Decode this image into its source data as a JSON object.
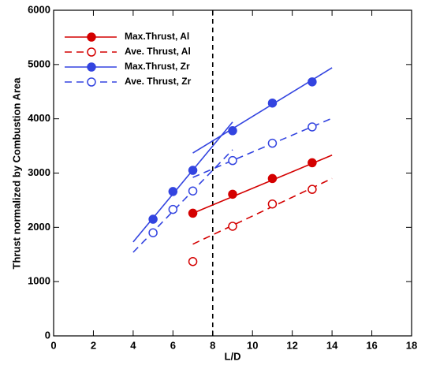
{
  "chart_data": {
    "type": "scatter",
    "x_label": "L/D",
    "y_label": "Thrust normalized by Combustion Area",
    "xlim": [
      0,
      18
    ],
    "xticks": [
      0,
      2,
      4,
      6,
      8,
      10,
      12,
      14,
      16,
      18
    ],
    "ylim": [
      0,
      6000
    ],
    "yticks": [
      0,
      1000,
      2000,
      3000,
      4000,
      5000,
      6000
    ],
    "legend": "upper left",
    "series": [
      {
        "name": "Max.Thrust, Al",
        "color": "#d40000",
        "marker": "filled",
        "dashed": false,
        "x": [
          7,
          9,
          11,
          13
        ],
        "values": [
          2260,
          2610,
          2900,
          3190
        ]
      },
      {
        "name": "Ave. Thrust, Al",
        "color": "#d40000",
        "marker": "open",
        "dashed": true,
        "x": [
          7,
          9,
          11,
          13
        ],
        "values": [
          1370,
          2020,
          2430,
          2700
        ]
      },
      {
        "name": "Max.Thrust, Zr",
        "color": "#3344e0",
        "marker": "filled",
        "dashed": false,
        "x": [
          5,
          6,
          7,
          9,
          11,
          13
        ],
        "values": [
          2150,
          2660,
          3050,
          3780,
          4290,
          4680
        ]
      },
      {
        "name": "Ave. Thrust, Zr",
        "color": "#3344e0",
        "marker": "open",
        "dashed": true,
        "x": [
          5,
          6,
          7,
          9,
          11,
          13
        ],
        "values": [
          1900,
          2330,
          2670,
          3230,
          3550,
          3850
        ]
      }
    ],
    "fit_lines": [
      {
        "series": 0,
        "x": [
          7,
          14
        ],
        "values": [
          2260,
          3330
        ]
      },
      {
        "series": 1,
        "x": [
          7,
          14
        ],
        "values": [
          1690,
          2900
        ]
      },
      {
        "series": 2,
        "x": [
          4,
          9
        ],
        "values": [
          1730,
          3940
        ]
      },
      {
        "series": 2,
        "x": [
          7,
          14
        ],
        "values": [
          3370,
          4940
        ]
      },
      {
        "series": 3,
        "x": [
          4,
          9
        ],
        "values": [
          1540,
          3430
        ]
      },
      {
        "series": 3,
        "x": [
          7,
          14
        ],
        "values": [
          2920,
          4010
        ]
      }
    ],
    "reference_line": {
      "x": 8,
      "color": "#000000"
    }
  }
}
